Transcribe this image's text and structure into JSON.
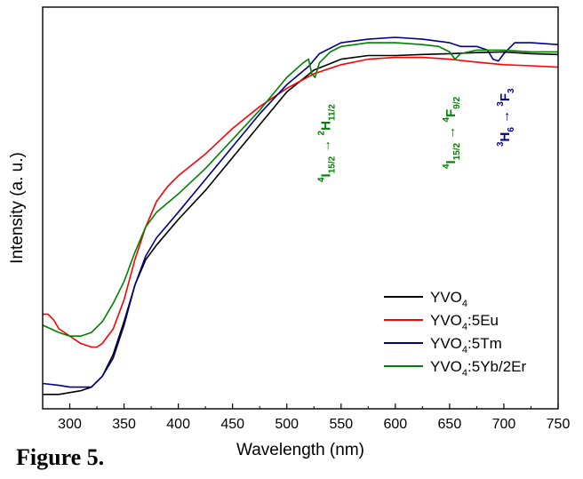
{
  "figure_caption": "Figure 5.",
  "chart_data": {
    "type": "line",
    "title": "",
    "xlabel": "Wavelength (nm)",
    "ylabel": "Intensity (a. u.)",
    "xlim": [
      275,
      750
    ],
    "ylim": [
      0,
      1
    ],
    "x_ticks": [
      300,
      350,
      400,
      450,
      500,
      550,
      600,
      650,
      700,
      750
    ],
    "y_ticks_shown": false,
    "legend_position": "bottom-right",
    "series": [
      {
        "name": "YVO4",
        "label_main": "YVO",
        "label_sub": "4",
        "label_suffix": "",
        "color": "#000000",
        "x": [
          275,
          290,
          310,
          320,
          330,
          340,
          350,
          360,
          370,
          380,
          400,
          425,
          450,
          475,
          500,
          525,
          550,
          575,
          600,
          625,
          650,
          675,
          700,
          725,
          750
        ],
        "y": [
          0.02,
          0.02,
          0.03,
          0.04,
          0.07,
          0.13,
          0.22,
          0.32,
          0.39,
          0.43,
          0.5,
          0.58,
          0.67,
          0.76,
          0.85,
          0.91,
          0.94,
          0.95,
          0.95,
          0.953,
          0.955,
          0.958,
          0.96,
          0.955,
          0.953
        ]
      },
      {
        "name": "YVO4:5Eu",
        "label_main": "YVO",
        "label_sub": "4",
        "label_suffix": ":5Eu",
        "color": "#ff0000",
        "x": [
          275,
          280,
          285,
          290,
          300,
          310,
          320,
          325,
          330,
          340,
          350,
          360,
          370,
          380,
          390,
          400,
          425,
          450,
          475,
          500,
          525,
          550,
          575,
          600,
          625,
          650,
          675,
          700,
          725,
          750
        ],
        "y": [
          0.24,
          0.24,
          0.225,
          0.2,
          0.18,
          0.16,
          0.15,
          0.15,
          0.16,
          0.2,
          0.28,
          0.39,
          0.48,
          0.55,
          0.59,
          0.62,
          0.68,
          0.75,
          0.81,
          0.86,
          0.9,
          0.925,
          0.94,
          0.945,
          0.945,
          0.94,
          0.932,
          0.925,
          0.922,
          0.918
        ]
      },
      {
        "name": "YVO4:5Tm",
        "label_main": "YVO",
        "label_sub": "4",
        "label_suffix": ":5Tm",
        "color": "#00008b",
        "x": [
          275,
          290,
          300,
          320,
          330,
          340,
          350,
          360,
          370,
          380,
          400,
          425,
          450,
          475,
          500,
          520,
          530,
          550,
          575,
          600,
          625,
          650,
          660,
          675,
          685,
          690,
          695,
          700,
          710,
          725,
          750
        ],
        "y": [
          0.05,
          0.045,
          0.04,
          0.04,
          0.07,
          0.12,
          0.21,
          0.32,
          0.4,
          0.45,
          0.52,
          0.61,
          0.7,
          0.79,
          0.87,
          0.92,
          0.955,
          0.985,
          0.995,
          1.0,
          0.995,
          0.985,
          0.975,
          0.975,
          0.965,
          0.94,
          0.935,
          0.955,
          0.985,
          0.985,
          0.98
        ]
      },
      {
        "name": "YVO4:5Yb/2Er",
        "label_main": "YVO",
        "label_sub": "4",
        "label_suffix": ":5Yb/2Er",
        "color": "#008000",
        "x": [
          275,
          290,
          300,
          310,
          320,
          330,
          340,
          350,
          360,
          370,
          380,
          400,
          425,
          450,
          475,
          500,
          515,
          520,
          523,
          526,
          530,
          540,
          550,
          575,
          600,
          625,
          640,
          650,
          655,
          660,
          675,
          700,
          725,
          750
        ],
        "y": [
          0.21,
          0.19,
          0.18,
          0.18,
          0.19,
          0.22,
          0.27,
          0.33,
          0.41,
          0.48,
          0.52,
          0.57,
          0.64,
          0.72,
          0.8,
          0.89,
          0.93,
          0.94,
          0.9,
          0.89,
          0.93,
          0.96,
          0.975,
          0.985,
          0.985,
          0.98,
          0.975,
          0.96,
          0.94,
          0.955,
          0.965,
          0.965,
          0.96,
          0.96
        ]
      }
    ],
    "annotations": [
      {
        "kind": "transition",
        "color": "#008000",
        "x": 535,
        "lower": "I",
        "lower_sup": "4",
        "lower_sub": "15/2",
        "upper": "H",
        "upper_sup": "2",
        "upper_sub": "11/2"
      },
      {
        "kind": "transition",
        "color": "#008000",
        "x": 650,
        "lower": "I",
        "lower_sup": "4",
        "lower_sub": "15/2",
        "upper": "F",
        "upper_sup": "4",
        "upper_sub": "9/2"
      },
      {
        "kind": "transition",
        "color": "#00008b",
        "x": 700,
        "lower": "H",
        "lower_sup": "3",
        "lower_sub": "6",
        "upper": "F",
        "upper_sup": "3",
        "upper_sub": "3"
      }
    ]
  }
}
